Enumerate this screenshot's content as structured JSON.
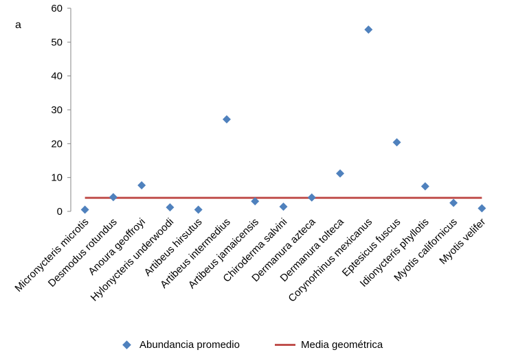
{
  "panel_label": "a",
  "colors": {
    "points": "#4F81BD",
    "mean_line": "#C0504D",
    "axis": "#868686"
  },
  "legend": {
    "points_label": "Abundancia promedio",
    "line_label": "Media geométrica",
    "position": "bottom"
  },
  "chart_data": {
    "type": "scatter",
    "categories": [
      "Micronycteris microtis",
      "Desmodus rotundus",
      "Anoura geoffroyi",
      "Hylonycteris underwoodi",
      "Artibeus hirsutus",
      "Artibeus intermedius",
      "Artibeus jamaicensis",
      "Chiroderma salvini",
      "Dermanura azteca",
      "Dermanura tolteca",
      "Corynorhinus mexicanus",
      "Eptesicus fuscus",
      "Idionycteris phyllotis",
      "Myotis californicus",
      "Myotis velifer"
    ],
    "series": [
      {
        "name": "Abundancia promedio",
        "values": [
          0.5,
          4.2,
          7.7,
          1.2,
          0.5,
          27.2,
          3.0,
          1.4,
          4.1,
          11.2,
          53.7,
          20.4,
          7.4,
          2.5,
          0.9
        ]
      },
      {
        "name": "Media geométrica",
        "value": 4.0
      }
    ],
    "ylim": [
      0,
      60
    ],
    "yticks": [
      0,
      10,
      20,
      30,
      40,
      50,
      60
    ],
    "grid": false
  }
}
